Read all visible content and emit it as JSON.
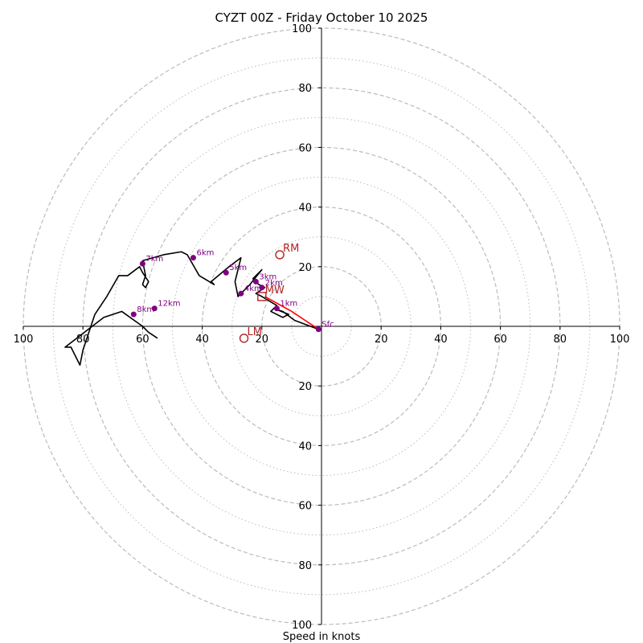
{
  "chart_data": {
    "type": "hodograph",
    "title": "CYZT 00Z - Friday October 10 2025",
    "xlabel": "Speed in knots",
    "axis_range": [
      -100,
      100
    ],
    "x_tick_labels": [
      "100",
      "80",
      "60",
      "40",
      "20",
      "20",
      "40",
      "60",
      "80",
      "100"
    ],
    "y_tick_labels_top": [
      "100",
      "80",
      "60",
      "40",
      "20"
    ],
    "y_tick_labels_bottom": [
      "20",
      "40",
      "60",
      "80",
      "100"
    ],
    "rings_dashed": [
      20,
      40,
      60,
      80,
      100
    ],
    "rings_dotted": [
      10,
      30,
      50,
      70,
      90
    ],
    "trace": [
      [
        -1,
        -1
      ],
      [
        -9,
        2
      ],
      [
        -13,
        5
      ],
      [
        -16,
        6
      ],
      [
        -11,
        4
      ],
      [
        -13,
        3
      ],
      [
        -17,
        5
      ],
      [
        -15,
        7
      ],
      [
        -20,
        10
      ],
      [
        -22,
        11
      ],
      [
        -19,
        13
      ],
      [
        -21,
        14
      ],
      [
        -23,
        16
      ],
      [
        -20,
        19
      ],
      [
        -24,
        14
      ],
      [
        -27,
        11
      ],
      [
        -28,
        10
      ],
      [
        -29,
        15
      ],
      [
        -27,
        23
      ],
      [
        -31,
        20
      ],
      [
        -37,
        15
      ],
      [
        -36,
        14
      ],
      [
        -41,
        17
      ],
      [
        -45,
        24
      ],
      [
        -47,
        25
      ],
      [
        -53,
        24
      ],
      [
        -60,
        22
      ],
      [
        -59,
        17
      ],
      [
        -60,
        14
      ],
      [
        -59,
        13
      ],
      [
        -58,
        15
      ],
      [
        -60,
        18
      ],
      [
        -61,
        20
      ],
      [
        -65,
        17
      ],
      [
        -68,
        17
      ],
      [
        -72,
        10
      ],
      [
        -76,
        4
      ],
      [
        -80,
        -8
      ],
      [
        -81,
        -13
      ],
      [
        -84,
        -7
      ],
      [
        -86,
        -7
      ],
      [
        -73,
        3
      ],
      [
        -67,
        5
      ],
      [
        -60,
        0
      ],
      [
        -58,
        -2
      ],
      [
        -55,
        -4
      ]
    ],
    "shear_segment": [
      [
        -1,
        -1
      ],
      [
        -10,
        5
      ],
      [
        -19,
        10
      ]
    ],
    "height_markers": [
      {
        "label": "Sfc",
        "x": -1,
        "y": -1
      },
      {
        "label": "1km",
        "x": -15,
        "y": 6
      },
      {
        "label": "2km",
        "x": -20,
        "y": 13
      },
      {
        "label": "3km",
        "x": -22,
        "y": 15
      },
      {
        "label": "4km",
        "x": -27,
        "y": 11
      },
      {
        "label": "5km",
        "x": -32,
        "y": 18
      },
      {
        "label": "6km",
        "x": -43,
        "y": 23
      },
      {
        "label": "7km",
        "x": -60,
        "y": 21
      },
      {
        "label": "8km",
        "x": -63,
        "y": 4
      },
      {
        "label": "12km",
        "x": -56,
        "y": 6
      }
    ],
    "motion_markers": [
      {
        "label": "RM",
        "symbol": "circle",
        "x": -14,
        "y": 24
      },
      {
        "label": "MW",
        "symbol": "square",
        "x": -20,
        "y": 10
      },
      {
        "label": "LM",
        "symbol": "circle",
        "x": -26,
        "y": -4
      }
    ],
    "colors": {
      "trace": "#000000",
      "shear": "#ff0000",
      "height_marker": "#800080",
      "motion_marker": "#b22222",
      "grid": "#bbbbbb",
      "axis": "#000000"
    }
  }
}
